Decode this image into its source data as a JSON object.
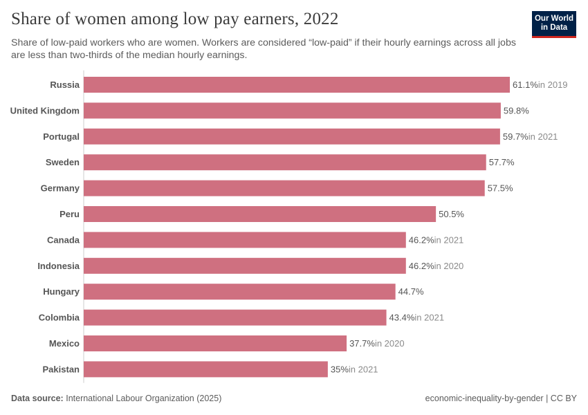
{
  "header": {
    "title": "Share of women among low pay earners, 2022",
    "subtitle": "Share of low-paid workers who are women. Workers are considered “low-paid” if their hourly earnings across all jobs are less than two-thirds of the median hourly earnings."
  },
  "logo": {
    "line1": "Our World",
    "line2": "in Data"
  },
  "footer": {
    "source_label": "Data source:",
    "source": "International Labour Organization (2025)",
    "slug": "economic-inequality-by-gender | CC BY"
  },
  "colors": {
    "bar": "#cf7080",
    "axis": "#cccccc",
    "label": "#555555",
    "year": "#8a8a8a"
  },
  "chart_data": {
    "type": "bar",
    "orientation": "horizontal",
    "unit": "%",
    "xlim": [
      0,
      61.1
    ],
    "categories": [
      "Russia",
      "United Kingdom",
      "Portugal",
      "Sweden",
      "Germany",
      "Peru",
      "Canada",
      "Indonesia",
      "Hungary",
      "Colombia",
      "Mexico",
      "Pakistan"
    ],
    "values": [
      61.1,
      59.8,
      59.7,
      57.7,
      57.5,
      50.5,
      46.2,
      46.2,
      44.7,
      43.4,
      37.7,
      35
    ],
    "value_labels": [
      "61.1%",
      "59.8%",
      "59.7%",
      "57.7%",
      "57.5%",
      "50.5%",
      "46.2%",
      "46.2%",
      "44.7%",
      "43.4%",
      "37.7%",
      "35%"
    ],
    "year_notes": [
      "in 2019",
      "",
      "in 2021",
      "",
      "",
      "",
      "in 2021",
      "in 2020",
      "",
      "in 2021",
      "in 2020",
      "in 2021"
    ]
  }
}
